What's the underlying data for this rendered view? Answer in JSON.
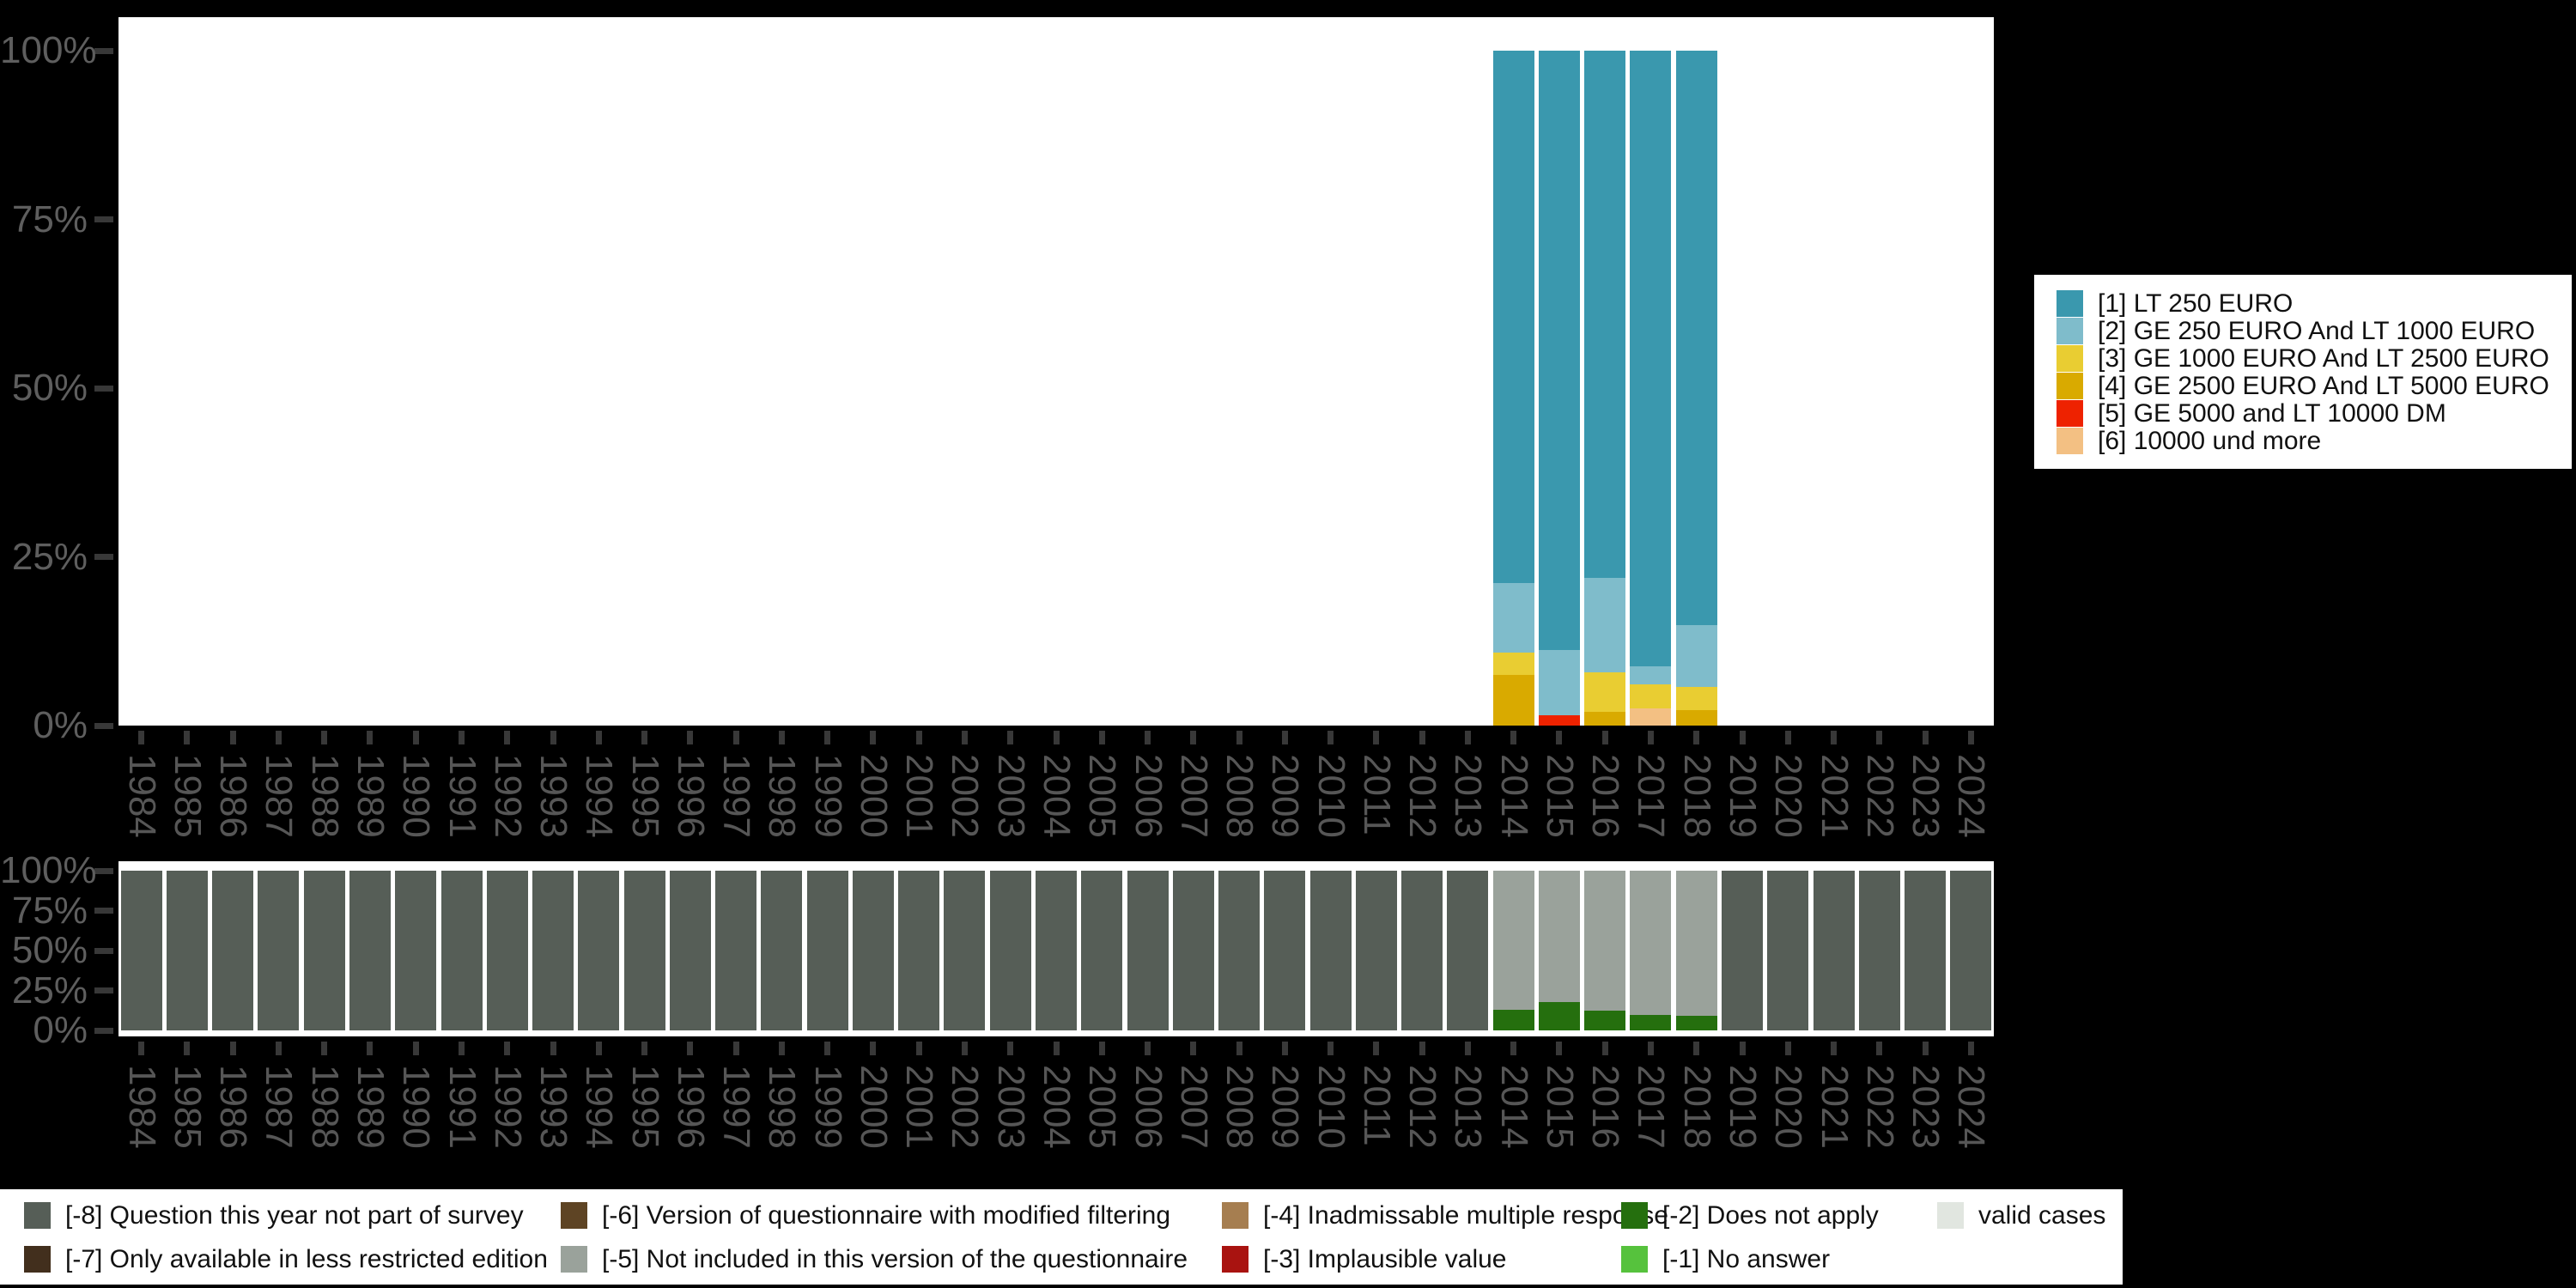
{
  "palette": {
    "page_background": "#000000",
    "panel_background": "#ffffff",
    "axis_text": "#5e5e5e",
    "tick_mark": "#383838",
    "legend_background": "#ffffff",
    "legend_text": "#111111"
  },
  "chart_data": [
    {
      "id": "values",
      "type": "bar",
      "stacking": "percent",
      "title": "",
      "xlabel": "",
      "ylabel": "",
      "ylim": [
        0,
        100
      ],
      "grid": false,
      "legend_position": "right",
      "yticks": [
        {
          "value": 0,
          "label": "0%"
        },
        {
          "value": 25,
          "label": "25%"
        },
        {
          "value": 50,
          "label": "50%"
        },
        {
          "value": 75,
          "label": "75%"
        },
        {
          "value": 100,
          "label": "100%"
        }
      ],
      "categories": [
        "1984",
        "1985",
        "1986",
        "1987",
        "1988",
        "1989",
        "1990",
        "1991",
        "1992",
        "1993",
        "1994",
        "1995",
        "1996",
        "1997",
        "1998",
        "1999",
        "2000",
        "2001",
        "2002",
        "2003",
        "2004",
        "2005",
        "2006",
        "2007",
        "2008",
        "2009",
        "2010",
        "2011",
        "2012",
        "2013",
        "2014",
        "2015",
        "2016",
        "2017",
        "2018",
        "2019",
        "2020",
        "2021",
        "2022",
        "2023",
        "2024"
      ],
      "series": [
        {
          "key": "6",
          "name": "[6] 10000 und more",
          "color": "#f3c083",
          "values": {
            "2017": 2.6
          }
        },
        {
          "key": "5",
          "name": "[5] GE 5000 and LT 10000 DM",
          "color": "#ee2200",
          "values": {
            "2015": 1.5
          }
        },
        {
          "key": "4",
          "name": "[4] GE 2500 EURO And LT 5000 EURO",
          "color": "#d9aa00",
          "values": {
            "2014": 7.5,
            "2016": 2.1,
            "2018": 2.3
          }
        },
        {
          "key": "3",
          "name": "[3] GE 1000 EURO And LT 2500 EURO",
          "color": "#e9cd32",
          "values": {
            "2014": 3.3,
            "2016": 5.8,
            "2017": 3.5,
            "2018": 3.4
          }
        },
        {
          "key": "2",
          "name": "[2] GE 250 EURO And LT 1000 EURO",
          "color": "#7fbccb",
          "values": {
            "2014": 10.3,
            "2015": 9.7,
            "2016": 14.0,
            "2017": 2.7,
            "2018": 9.2
          }
        },
        {
          "key": "1",
          "name": "[1] LT 250 EURO",
          "color": "#3a98ae",
          "values": {
            "2014": 78.9,
            "2015": 88.8,
            "2016": 78.1,
            "2017": 91.2,
            "2018": 85.1
          }
        }
      ],
      "legend": [
        {
          "key": "1",
          "label": "[1] LT 250 EURO",
          "color": "#3a98ae"
        },
        {
          "key": "2",
          "label": "[2] GE 250 EURO And LT 1000 EURO",
          "color": "#7fbccb"
        },
        {
          "key": "3",
          "label": "[3] GE 1000 EURO And LT 2500 EURO",
          "color": "#e9cd32"
        },
        {
          "key": "4",
          "label": "[4] GE 2500 EURO And LT 5000 EURO",
          "color": "#d9aa00"
        },
        {
          "key": "5",
          "label": "[5] GE 5000 and LT 10000 DM",
          "color": "#ee2200"
        },
        {
          "key": "6",
          "label": "[6] 10000 und more",
          "color": "#f3c083"
        }
      ]
    },
    {
      "id": "missings",
      "type": "bar",
      "stacking": "percent",
      "title": "",
      "xlabel": "",
      "ylabel": "",
      "ylim": [
        0,
        100
      ],
      "grid": false,
      "legend_position": "bottom",
      "yticks": [
        {
          "value": 0,
          "label": "0%"
        },
        {
          "value": 25,
          "label": "25%"
        },
        {
          "value": 50,
          "label": "50%"
        },
        {
          "value": 75,
          "label": "75%"
        },
        {
          "value": 100,
          "label": "100%"
        }
      ],
      "categories": [
        "1984",
        "1985",
        "1986",
        "1987",
        "1988",
        "1989",
        "1990",
        "1991",
        "1992",
        "1993",
        "1994",
        "1995",
        "1996",
        "1997",
        "1998",
        "1999",
        "2000",
        "2001",
        "2002",
        "2003",
        "2004",
        "2005",
        "2006",
        "2007",
        "2008",
        "2009",
        "2010",
        "2011",
        "2012",
        "2013",
        "2014",
        "2015",
        "2016",
        "2017",
        "2018",
        "2019",
        "2020",
        "2021",
        "2022",
        "2023",
        "2024"
      ],
      "series": [
        {
          "key": "-2",
          "name": "[-2] Does not apply",
          "color": "#256f0e",
          "values": {
            "2014": 13.0,
            "2015": 17.5,
            "2016": 12.2,
            "2017": 9.5,
            "2018": 9.0
          }
        },
        {
          "key": "-5",
          "name": "[-5] Not included in this version of the questionnaire",
          "color": "#9aa29b",
          "values": {
            "2014": 87.0,
            "2015": 82.5,
            "2016": 87.8,
            "2017": 90.5,
            "2018": 91.0
          }
        },
        {
          "key": "-8",
          "name": "[-8] Question this year not part of survey",
          "color": "#565e57",
          "values": {
            "1984": 100,
            "1985": 100,
            "1986": 100,
            "1987": 100,
            "1988": 100,
            "1989": 100,
            "1990": 100,
            "1991": 100,
            "1992": 100,
            "1993": 100,
            "1994": 100,
            "1995": 100,
            "1996": 100,
            "1997": 100,
            "1998": 100,
            "1999": 100,
            "2000": 100,
            "2001": 100,
            "2002": 100,
            "2003": 100,
            "2004": 100,
            "2005": 100,
            "2006": 100,
            "2007": 100,
            "2008": 100,
            "2009": 100,
            "2010": 100,
            "2011": 100,
            "2012": 100,
            "2013": 100,
            "2019": 100,
            "2020": 100,
            "2021": 100,
            "2022": 100,
            "2023": 100,
            "2024": 100
          }
        }
      ],
      "legend": [
        {
          "key": "-8",
          "label": "[-8] Question this year not part of survey",
          "color": "#565e57"
        },
        {
          "key": "-7",
          "label": "[-7] Only available in less restricted edition",
          "color": "#422f1d"
        },
        {
          "key": "-6",
          "label": "[-6] Version of questionnaire with modified filtering",
          "color": "#5e4424"
        },
        {
          "key": "-5",
          "label": "[-5] Not included in this version of the questionnaire",
          "color": "#9aa29b"
        },
        {
          "key": "-4",
          "label": "[-4] Inadmissable multiple response",
          "color": "#a67e50"
        },
        {
          "key": "-3",
          "label": "[-3] Implausible value",
          "color": "#a91310"
        },
        {
          "key": "-2",
          "label": "[-2] Does not apply",
          "color": "#256f0e"
        },
        {
          "key": "-1",
          "label": "[-1] No answer",
          "color": "#56c23d"
        },
        {
          "key": "valid",
          "label": "valid cases",
          "color": "#e1e6e0"
        }
      ]
    }
  ]
}
